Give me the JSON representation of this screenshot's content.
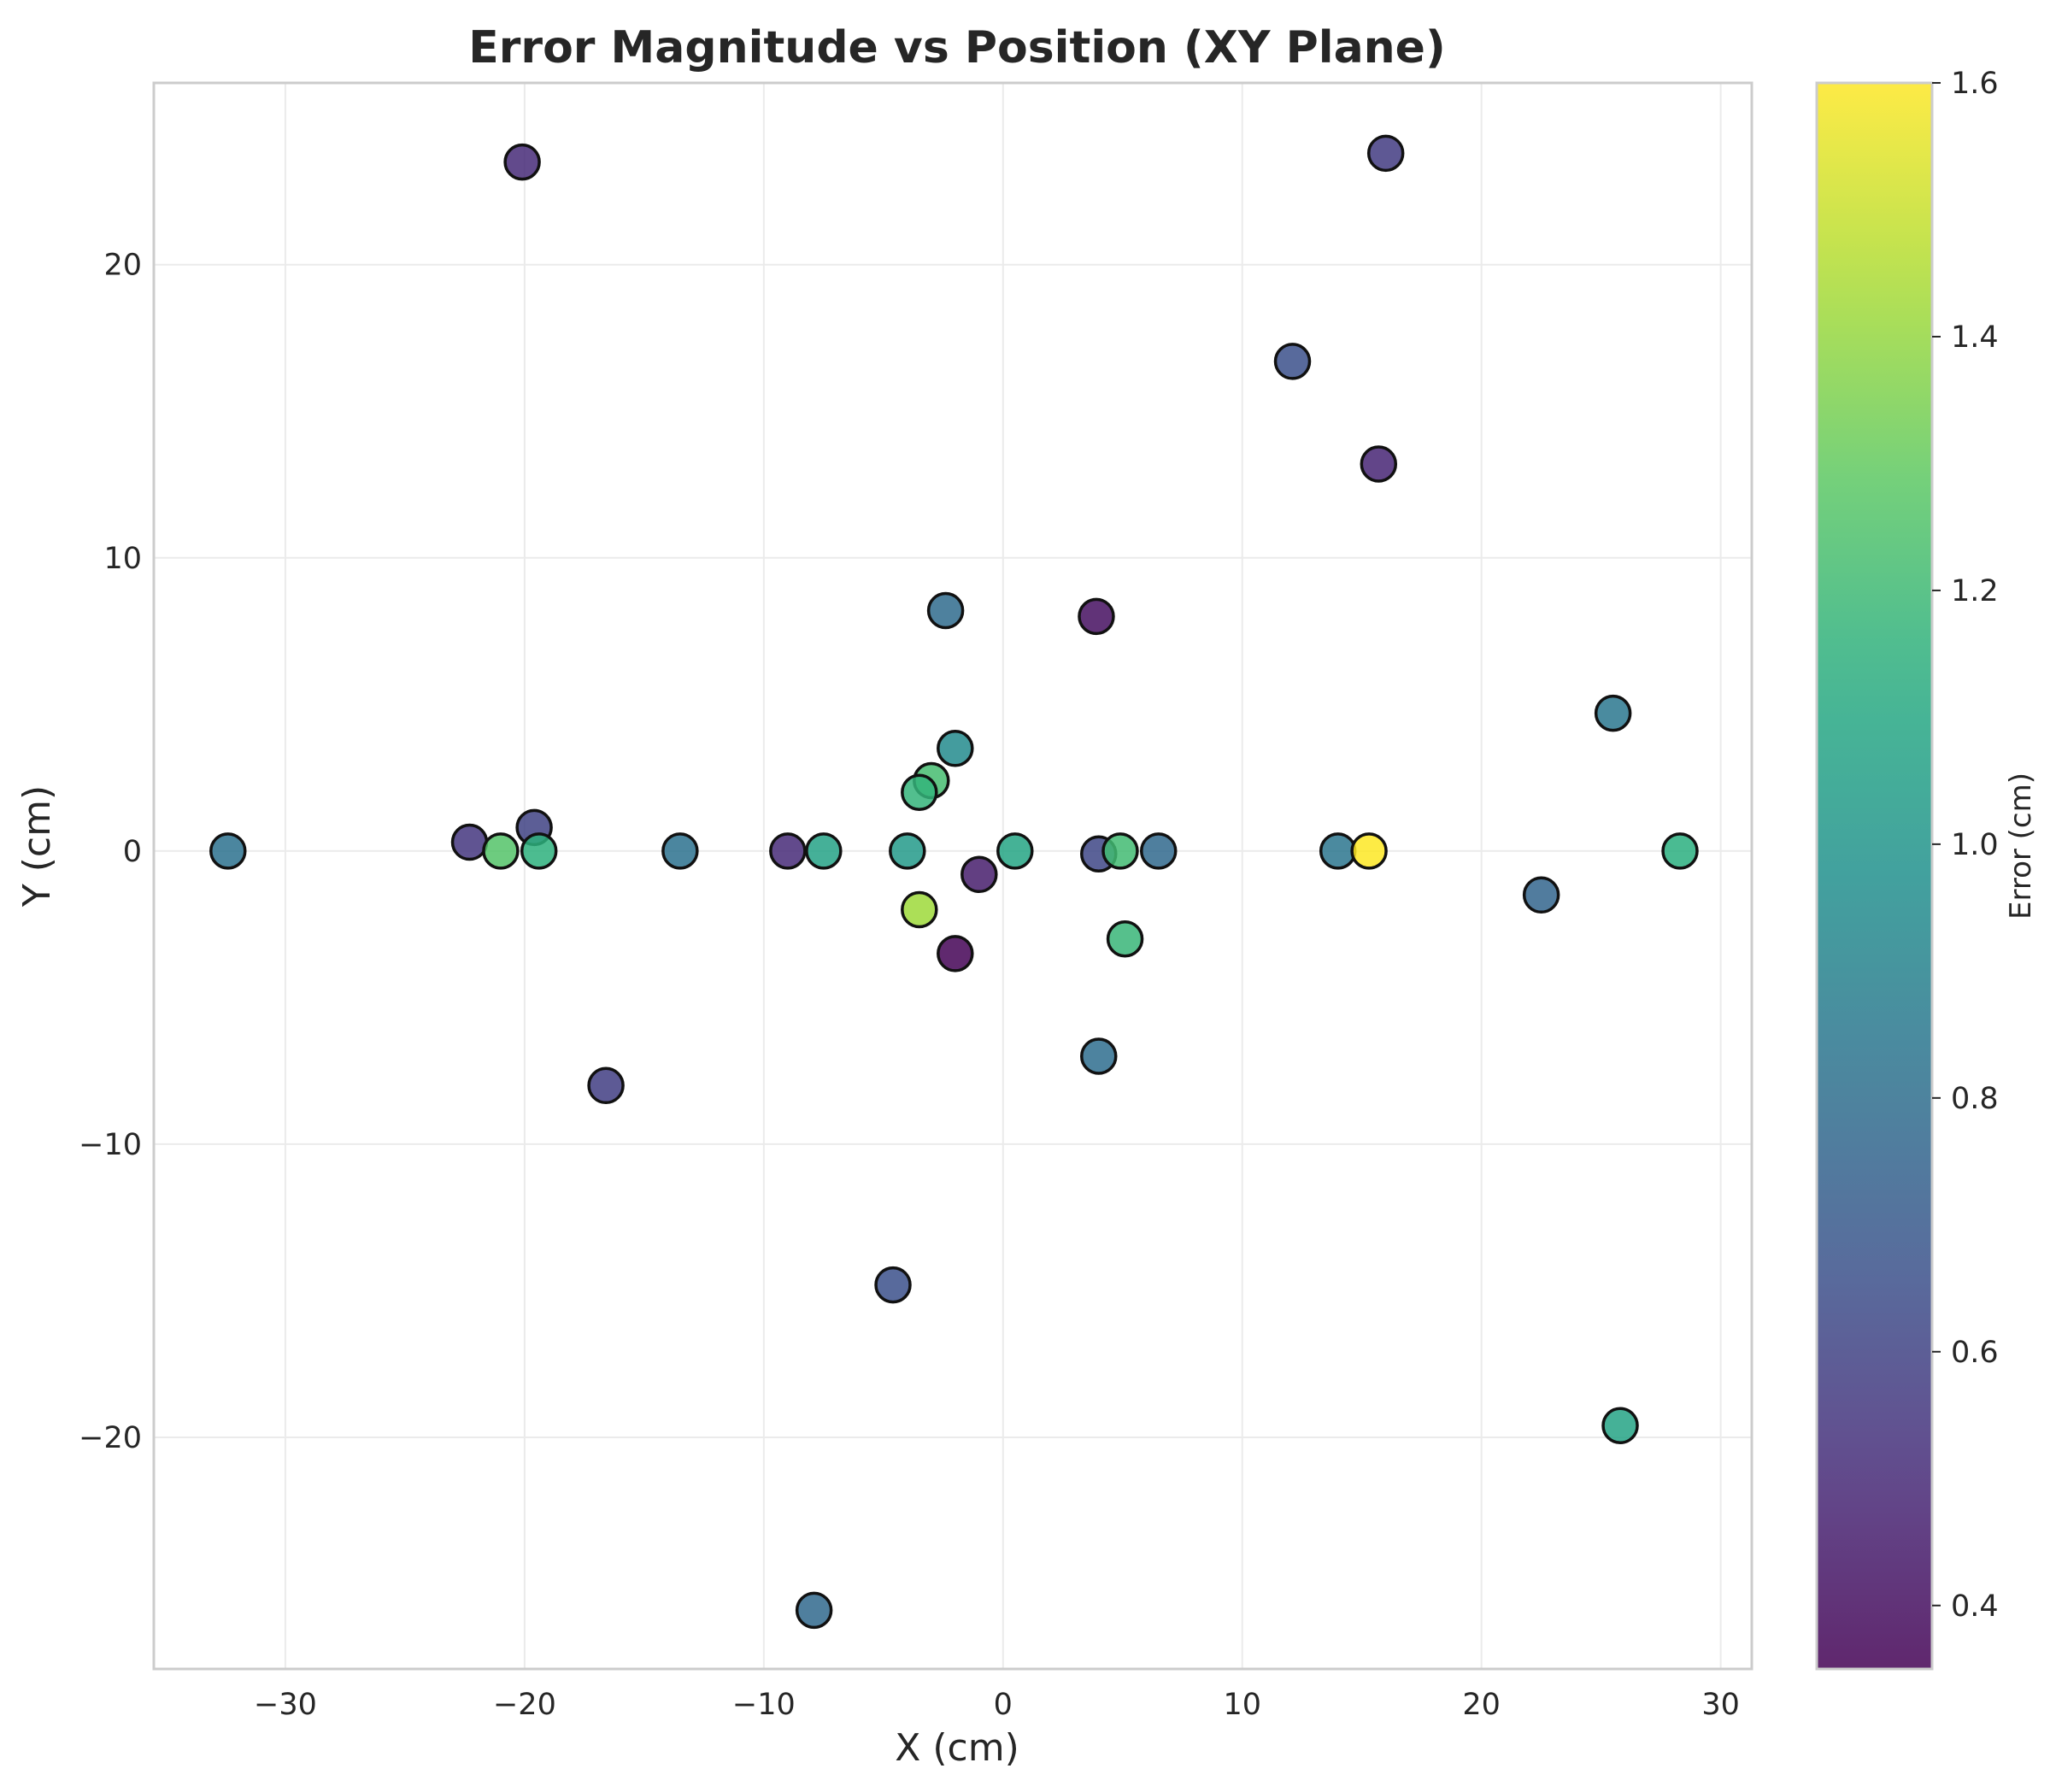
{
  "chart_data": {
    "type": "scatter",
    "title": "Error Magnitude vs Position (XY Plane)",
    "xlabel": "X (cm)",
    "ylabel": "Y (cm)",
    "xlim": [
      -35.5,
      31.3
    ],
    "ylim": [
      -27.9,
      26.2
    ],
    "xticks": [
      -30,
      -20,
      -10,
      0,
      10,
      20,
      30
    ],
    "yticks": [
      -20,
      -10,
      0,
      10,
      20
    ],
    "grid": true,
    "colorbar": {
      "label": "Error (cm)",
      "colormap": "viridis",
      "range": [
        0.35,
        1.6
      ],
      "ticks": [
        0.4,
        0.6,
        0.8,
        1.0,
        1.2,
        1.4,
        1.6
      ],
      "tick_labels": [
        "0.4",
        "0.6",
        "0.8",
        "1.0",
        "1.2",
        "1.4",
        "1.6"
      ]
    },
    "points": [
      {
        "x": -20.1,
        "y": 23.5,
        "error": 0.5
      },
      {
        "x": 16.0,
        "y": 23.8,
        "error": 0.57
      },
      {
        "x": 12.1,
        "y": 16.7,
        "error": 0.66
      },
      {
        "x": 15.7,
        "y": 13.2,
        "error": 0.48
      },
      {
        "x": -2.4,
        "y": 8.2,
        "error": 0.79
      },
      {
        "x": 3.9,
        "y": 8.0,
        "error": 0.4
      },
      {
        "x": 25.5,
        "y": 4.7,
        "error": 0.85
      },
      {
        "x": -2.0,
        "y": 3.5,
        "error": 0.95
      },
      {
        "x": -3.0,
        "y": 2.4,
        "error": 1.22
      },
      {
        "x": -3.5,
        "y": 2.0,
        "error": 1.17
      },
      {
        "x": -32.4,
        "y": 0.0,
        "error": 0.82
      },
      {
        "x": -22.3,
        "y": 0.3,
        "error": 0.55
      },
      {
        "x": -19.6,
        "y": 0.8,
        "error": 0.6
      },
      {
        "x": -21.0,
        "y": 0.0,
        "error": 1.26
      },
      {
        "x": -19.4,
        "y": 0.0,
        "error": 1.15
      },
      {
        "x": -13.5,
        "y": 0.0,
        "error": 0.82
      },
      {
        "x": -9.0,
        "y": 0.0,
        "error": 0.5
      },
      {
        "x": -7.5,
        "y": 0.0,
        "error": 1.07
      },
      {
        "x": -4.0,
        "y": 0.0,
        "error": 1.03
      },
      {
        "x": -1.0,
        "y": -0.8,
        "error": 0.45
      },
      {
        "x": 0.5,
        "y": 0.0,
        "error": 1.09
      },
      {
        "x": 4.0,
        "y": -0.1,
        "error": 0.62
      },
      {
        "x": 4.9,
        "y": 0.0,
        "error": 1.21
      },
      {
        "x": 6.5,
        "y": 0.0,
        "error": 0.78
      },
      {
        "x": 14.0,
        "y": 0.0,
        "error": 0.84
      },
      {
        "x": 15.3,
        "y": 0.0,
        "error": 1.6
      },
      {
        "x": 28.3,
        "y": 0.0,
        "error": 1.14
      },
      {
        "x": 22.5,
        "y": -1.5,
        "error": 0.76
      },
      {
        "x": -3.5,
        "y": -2.0,
        "error": 1.42
      },
      {
        "x": -2.0,
        "y": -3.5,
        "error": 0.36
      },
      {
        "x": 5.1,
        "y": -3.0,
        "error": 1.18
      },
      {
        "x": 4.0,
        "y": -7.0,
        "error": 0.8
      },
      {
        "x": -16.6,
        "y": -8.0,
        "error": 0.58
      },
      {
        "x": -4.6,
        "y": -14.8,
        "error": 0.66
      },
      {
        "x": 25.8,
        "y": -19.6,
        "error": 1.08
      },
      {
        "x": -7.9,
        "y": -25.9,
        "error": 0.78
      }
    ]
  }
}
